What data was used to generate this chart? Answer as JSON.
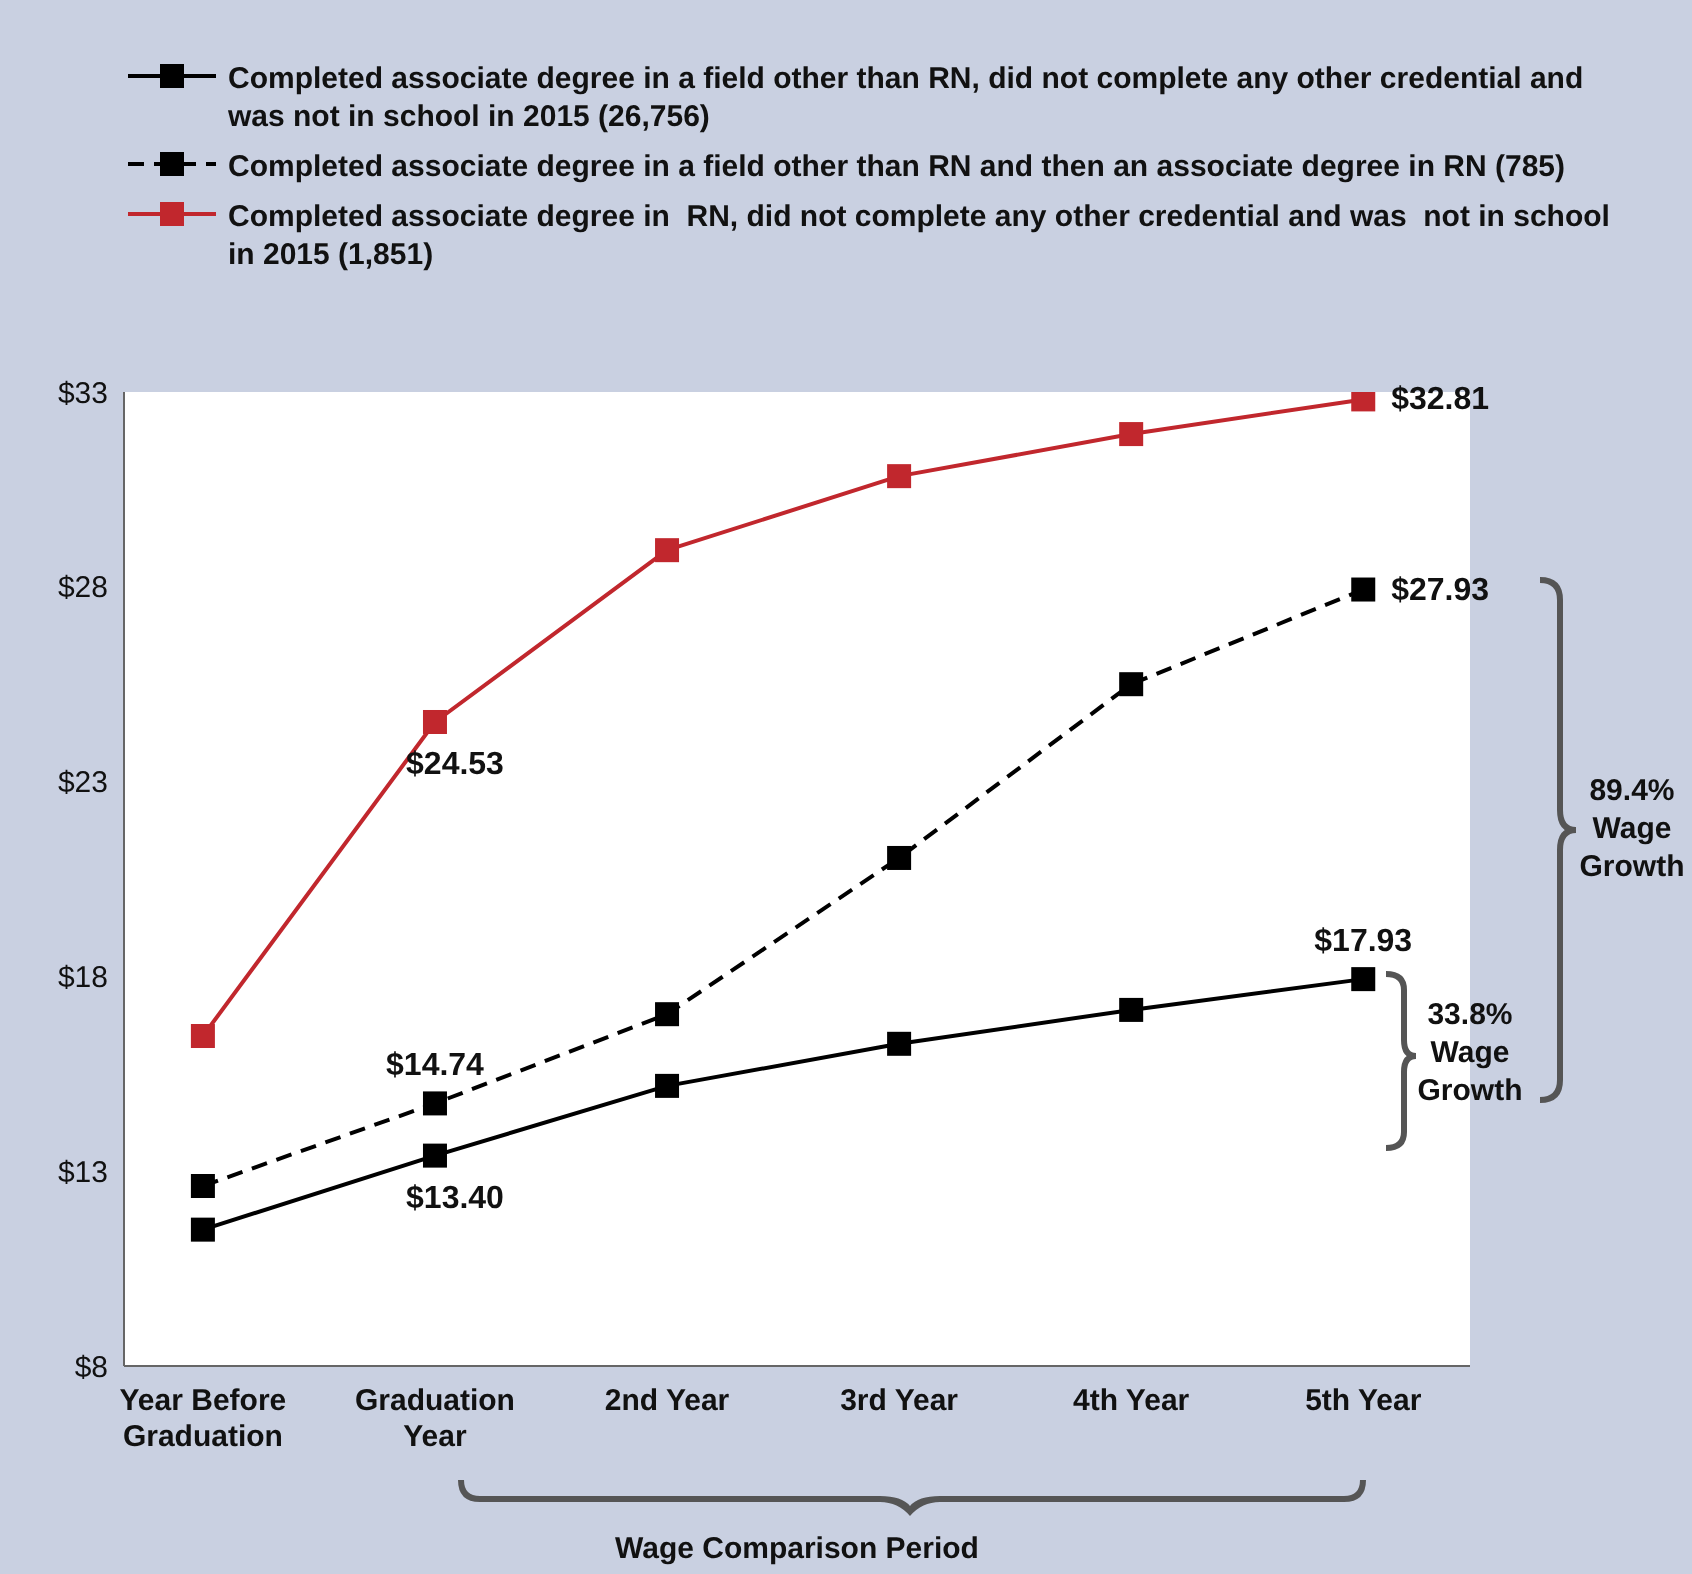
{
  "chart_data": {
    "type": "line",
    "xlabel": "Wage Comparison Period",
    "categories": [
      "Year Before Graduation",
      "Graduation Year",
      "2nd Year",
      "3rd Year",
      "4th Year",
      "5th Year"
    ],
    "series": [
      {
        "name": "Completed associate degree in a field other than RN, did not complete any other credential and was not in school in 2015 (26,756)",
        "color": "#000000",
        "line_style": "solid",
        "values": [
          11.5,
          13.4,
          15.19,
          16.27,
          17.14,
          17.93
        ],
        "value_labels": [
          null,
          "$13.40",
          null,
          null,
          null,
          "$17.93"
        ]
      },
      {
        "name": "Completed associate degree in a field other than RN and then an associate degree in RN (785)",
        "color": "#000000",
        "line_style": "dashed",
        "values": [
          12.62,
          14.74,
          17.03,
          21.04,
          25.5,
          27.93
        ],
        "value_labels": [
          null,
          "$14.74",
          null,
          null,
          null,
          "$27.93"
        ]
      },
      {
        "name": "Completed associate degree in  RN, did not complete any other credential and was  not in school in 2015 (1,851)",
        "color": "#c1272d",
        "line_style": "solid",
        "values": [
          16.47,
          24.53,
          28.94,
          30.84,
          31.92,
          32.81
        ],
        "value_labels": [
          null,
          "$24.53",
          null,
          null,
          null,
          "$32.81"
        ]
      }
    ],
    "ylim": [
      8,
      33
    ],
    "yticks": [
      {
        "value": 8,
        "label": "$8"
      },
      {
        "value": 13,
        "label": "$13"
      },
      {
        "value": 18,
        "label": "$18"
      },
      {
        "value": 23,
        "label": "$23"
      },
      {
        "value": 28,
        "label": "$28"
      },
      {
        "value": 33,
        "label": "$33"
      }
    ],
    "marker": "square",
    "legend": "top",
    "annotations": [
      "89.4% Wage Growth",
      "33.8% Wage Growth"
    ]
  }
}
